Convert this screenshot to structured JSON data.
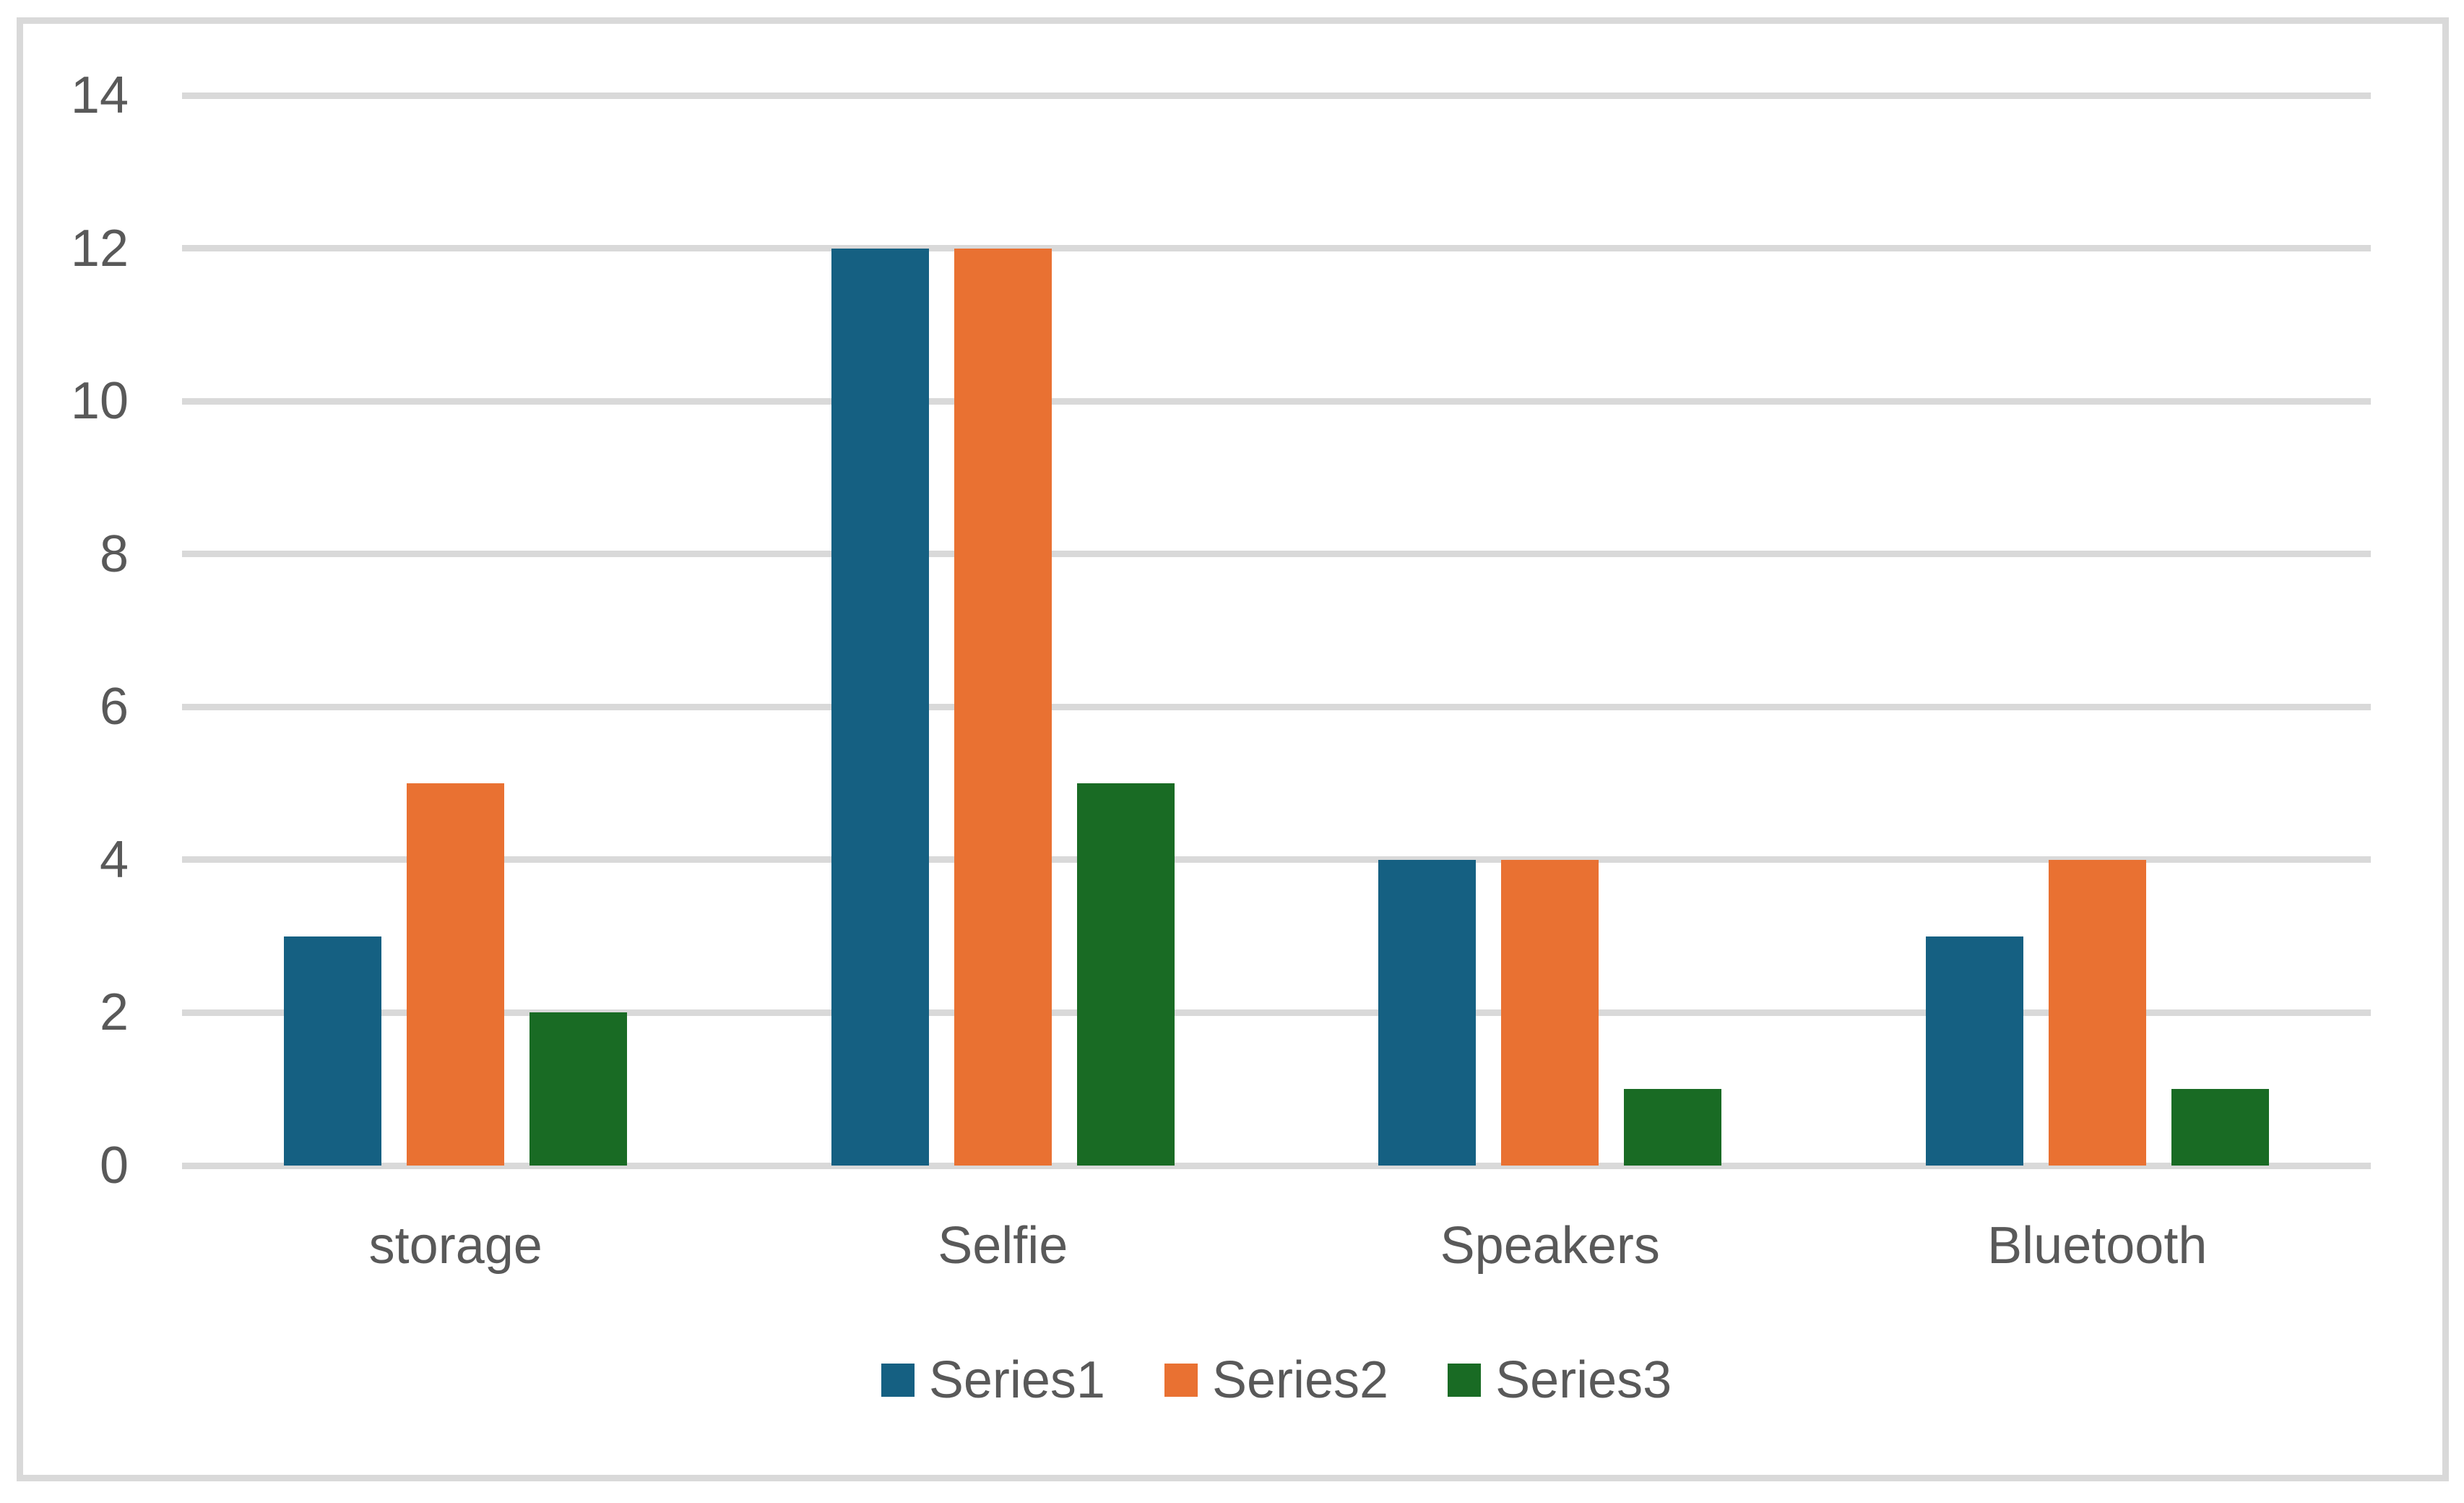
{
  "chart_data": {
    "type": "bar",
    "title": "",
    "xlabel": "",
    "ylabel": "",
    "categories": [
      "storage",
      "Selfie",
      "Speakers",
      "Bluetooth"
    ],
    "series": [
      {
        "name": "Series1",
        "color": "#156082",
        "values": [
          3,
          12,
          4,
          3
        ]
      },
      {
        "name": "Series2",
        "color": "#E97132",
        "values": [
          5,
          12,
          4,
          4
        ]
      },
      {
        "name": "Series3",
        "color": "#196B24",
        "values": [
          2,
          5,
          1,
          1
        ]
      }
    ],
    "ylim": [
      0,
      14
    ],
    "yticks": [
      0,
      2,
      4,
      6,
      8,
      10,
      12,
      14
    ],
    "grid": true,
    "legend_position": "bottom",
    "colors": {
      "gridline": "#D9D9D9",
      "frame_border": "#D9D9D9",
      "text": "#595959",
      "background": "#FFFFFF"
    }
  }
}
